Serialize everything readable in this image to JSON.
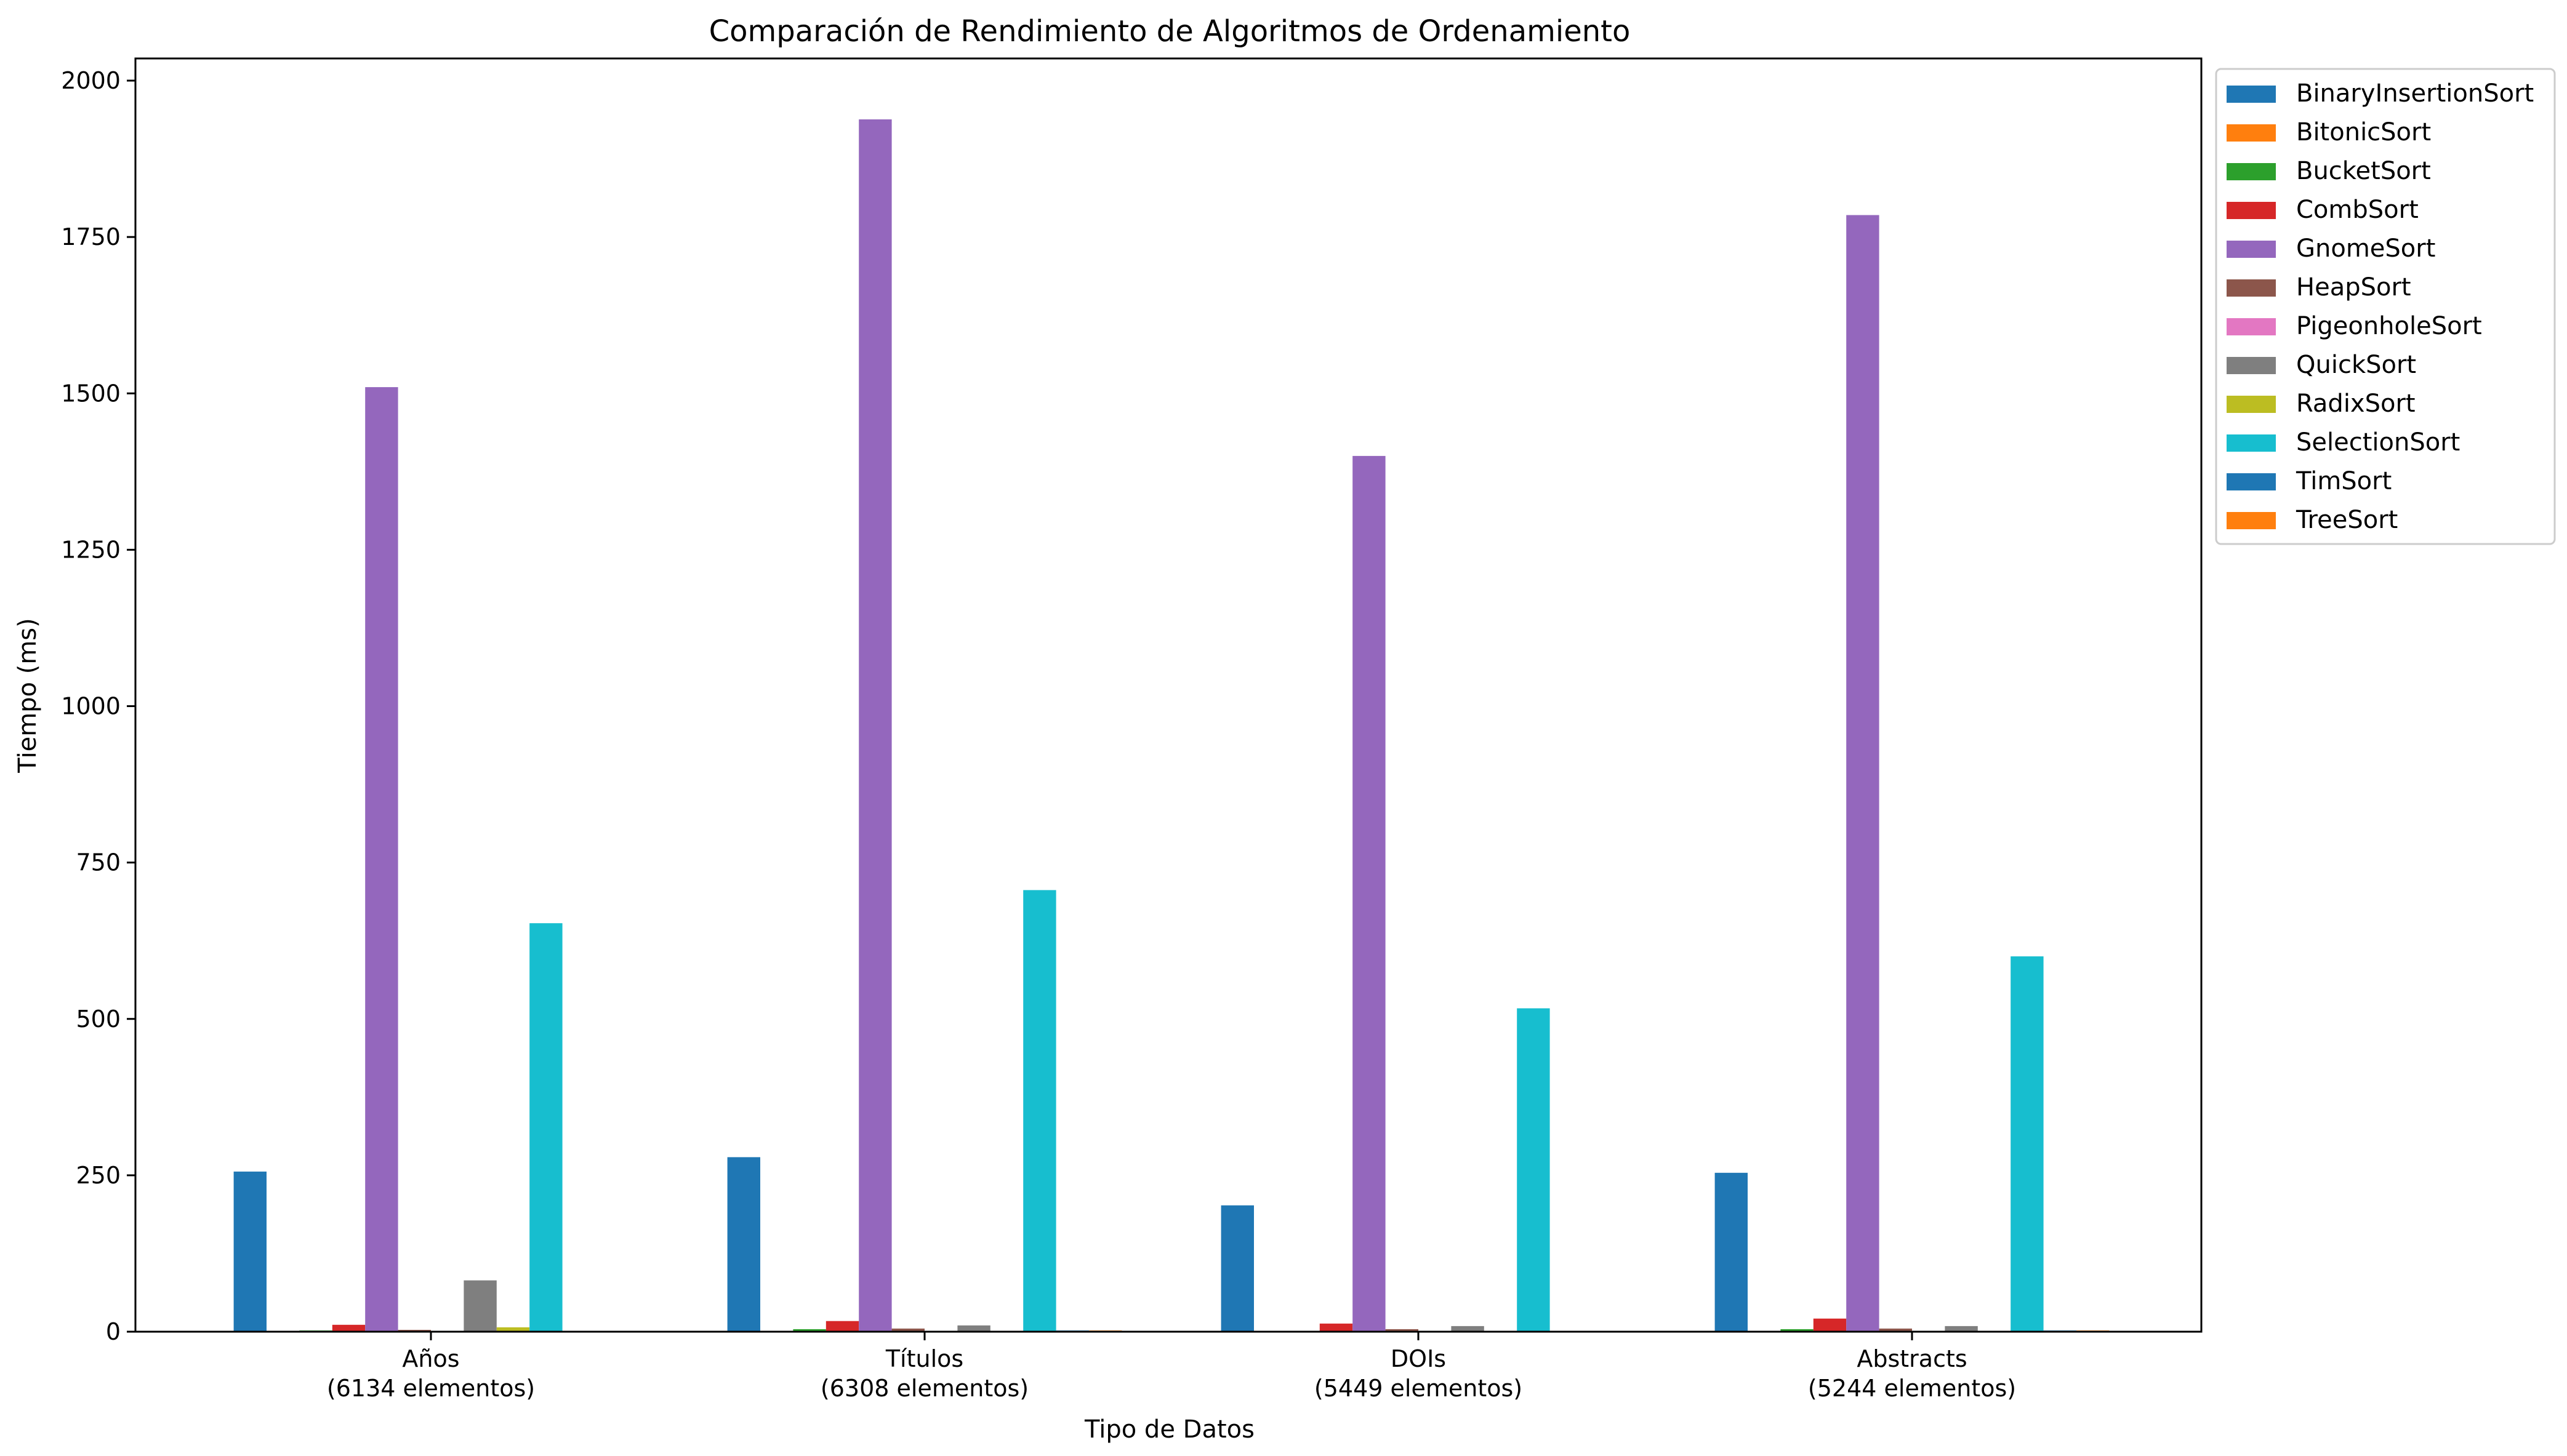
{
  "chart_data": {
    "type": "bar",
    "title": "Comparación de Rendimiento de Algoritmos de Ordenamiento",
    "xlabel": "Tipo de Datos",
    "ylabel": "Tiempo (ms)",
    "ylim": [
      0,
      2030
    ],
    "yticks": [
      "0",
      "250",
      "500",
      "750",
      "1000",
      "1250",
      "1500",
      "1750",
      "2000"
    ],
    "grid": false,
    "legend_position": "outside-top-right",
    "categories": [
      [
        "Años",
        "(6134 elementos)"
      ],
      [
        "Títulos",
        "(6308 elementos)"
      ],
      [
        "DOIs",
        "(5449 elementos)"
      ],
      [
        "Abstracts",
        "(5244 elementos)"
      ]
    ],
    "series": [
      {
        "name": "BinaryInsertionSort",
        "color": "#1f77b4",
        "values": [
          256,
          279,
          202,
          254
        ]
      },
      {
        "name": "BitonicSort",
        "color": "#ff7f0e",
        "values": [
          1,
          1,
          1,
          1
        ]
      },
      {
        "name": "BucketSort",
        "color": "#2ca02c",
        "values": [
          2,
          4,
          1,
          4
        ]
      },
      {
        "name": "CombSort",
        "color": "#d62728",
        "values": [
          11,
          17,
          13,
          21
        ]
      },
      {
        "name": "GnomeSort",
        "color": "#9467bd",
        "values": [
          1510,
          1938,
          1400,
          1785
        ]
      },
      {
        "name": "HeapSort",
        "color": "#8c564b",
        "values": [
          3,
          5,
          4,
          5
        ]
      },
      {
        "name": "PigeonholeSort",
        "color": "#e377c2",
        "values": [
          1,
          1,
          1,
          1
        ]
      },
      {
        "name": "QuickSort",
        "color": "#7f7f7f",
        "values": [
          82,
          10,
          9,
          9
        ]
      },
      {
        "name": "RadixSort",
        "color": "#bcbd22",
        "values": [
          7,
          1,
          1,
          1
        ]
      },
      {
        "name": "SelectionSort",
        "color": "#17becf",
        "values": [
          653,
          706,
          517,
          600
        ]
      },
      {
        "name": "TimSort",
        "color": "#1f77b4",
        "values": [
          1,
          2,
          1,
          2
        ]
      },
      {
        "name": "TreeSort",
        "color": "#ff7f0e",
        "values": [
          1,
          2,
          1,
          2
        ]
      }
    ]
  }
}
